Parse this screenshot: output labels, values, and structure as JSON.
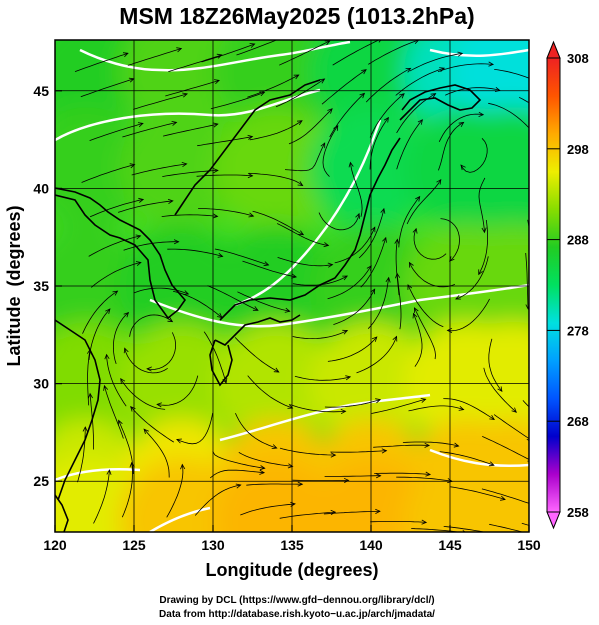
{
  "chart_data": {
    "type": "heatmap",
    "title": "MSM 18Z26May2025 (1013.2hPa)",
    "xlabel": "Longitude (degrees)",
    "ylabel": "Latitude  (degrees)",
    "xlim": [
      120,
      150
    ],
    "ylim": [
      22.4,
      47.6
    ],
    "xticks": [
      120,
      125,
      130,
      135,
      140,
      145,
      150
    ],
    "yticks": [
      25,
      30,
      35,
      40,
      45
    ],
    "xtick_labels": [
      "120",
      "125",
      "130",
      "135",
      "140",
      "145",
      "150"
    ],
    "ytick_labels": [
      "25",
      "30",
      "35",
      "40",
      "45"
    ],
    "grid": true,
    "colorbar": {
      "min": 258,
      "max": 308,
      "ticks": [
        258,
        268,
        278,
        288,
        298,
        308
      ],
      "tick_labels": [
        "258",
        "268",
        "278",
        "288",
        "298",
        "308"
      ],
      "colors": [
        "#ff66ff",
        "#aa00cc",
        "#0000cc",
        "#0055ff",
        "#00a0ff",
        "#00e0e0",
        "#00e060",
        "#22cc22",
        "#88dd00",
        "#eeee00",
        "#ffaa00",
        "#ff5500",
        "#ee2222"
      ]
    },
    "temperature_field": [
      {
        "lon": 122,
        "lat": 46,
        "value": 287
      },
      {
        "lon": 128,
        "lat": 46,
        "value": 289
      },
      {
        "lon": 134,
        "lat": 46,
        "value": 288
      },
      {
        "lon": 140,
        "lat": 46,
        "value": 285
      },
      {
        "lon": 146,
        "lat": 46,
        "value": 280
      },
      {
        "lon": 149,
        "lat": 46,
        "value": 279
      },
      {
        "lon": 122,
        "lat": 41,
        "value": 288
      },
      {
        "lon": 128,
        "lat": 41,
        "value": 289
      },
      {
        "lon": 134,
        "lat": 41,
        "value": 290
      },
      {
        "lon": 140,
        "lat": 41,
        "value": 284
      },
      {
        "lon": 146,
        "lat": 41,
        "value": 285
      },
      {
        "lon": 149,
        "lat": 41,
        "value": 285
      },
      {
        "lon": 122,
        "lat": 35,
        "value": 288
      },
      {
        "lon": 128,
        "lat": 35,
        "value": 287
      },
      {
        "lon": 134,
        "lat": 35,
        "value": 287
      },
      {
        "lon": 140,
        "lat": 35,
        "value": 288
      },
      {
        "lon": 146,
        "lat": 35,
        "value": 290
      },
      {
        "lon": 149,
        "lat": 35,
        "value": 290
      },
      {
        "lon": 122,
        "lat": 30,
        "value": 291
      },
      {
        "lon": 128,
        "lat": 30,
        "value": 292
      },
      {
        "lon": 134,
        "lat": 30,
        "value": 293
      },
      {
        "lon": 140,
        "lat": 30,
        "value": 294
      },
      {
        "lon": 146,
        "lat": 30,
        "value": 295
      },
      {
        "lon": 149,
        "lat": 30,
        "value": 295
      },
      {
        "lon": 122,
        "lat": 25,
        "value": 294
      },
      {
        "lon": 128,
        "lat": 25,
        "value": 296
      },
      {
        "lon": 134,
        "lat": 25,
        "value": 298
      },
      {
        "lon": 140,
        "lat": 25,
        "value": 298
      },
      {
        "lon": 146,
        "lat": 25,
        "value": 298
      },
      {
        "lon": 149,
        "lat": 25,
        "value": 298
      },
      {
        "lon": 122,
        "lat": 23,
        "value": 295
      },
      {
        "lon": 128,
        "lat": 23,
        "value": 298
      },
      {
        "lon": 134,
        "lat": 23,
        "value": 299
      },
      {
        "lon": 140,
        "lat": 23,
        "value": 299
      },
      {
        "lon": 146,
        "lat": 23,
        "value": 298
      },
      {
        "lon": 149,
        "lat": 23,
        "value": 298
      }
    ],
    "wind_vortices": [
      {
        "lon": 146.5,
        "lat": 42.5,
        "rotation": "counterclockwise"
      },
      {
        "lon": 138.5,
        "lat": 38.5,
        "rotation": "clockwise"
      },
      {
        "lon": 126.0,
        "lat": 32.5,
        "rotation": "counterclockwise"
      },
      {
        "lon": 143.5,
        "lat": 37.5,
        "rotation": "counterclockwise"
      }
    ]
  },
  "credits": {
    "line1": "Drawing by DCL (https://www.gfd−dennou.org/library/dcl/)",
    "line2": "Data from http://database.rish.kyoto−u.ac.jp/arch/jmadata/"
  }
}
